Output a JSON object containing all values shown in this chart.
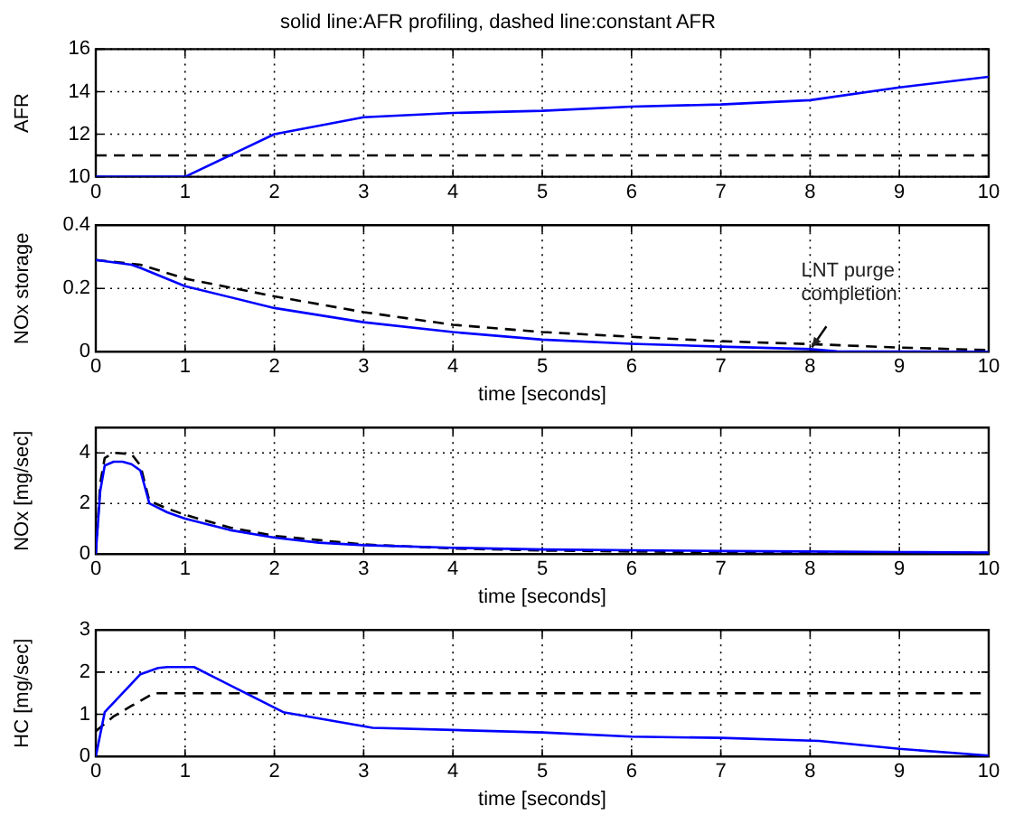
{
  "chart_data": [
    {
      "type": "line",
      "title": "solid line:AFR profiling, dashed line:constant AFR",
      "ylabel": "AFR",
      "xlim": [
        0,
        10
      ],
      "xticks": [
        0,
        1,
        2,
        3,
        4,
        5,
        6,
        7,
        8,
        9,
        10
      ],
      "ylim": [
        10,
        16
      ],
      "yticks": [
        10,
        12,
        14,
        16
      ],
      "grid": true,
      "marker": "none",
      "series": [
        {
          "color": "#0000ff",
          "line_style": "solid",
          "x": [
            0,
            1,
            2,
            3,
            4,
            5,
            6,
            7,
            8,
            9,
            10
          ],
          "values": [
            10,
            10,
            12,
            12.8,
            13,
            13.1,
            13.3,
            13.4,
            13.6,
            14.2,
            14.7
          ]
        },
        {
          "color": "#000000",
          "line_style": "dashed",
          "x": [
            0,
            10
          ],
          "values": [
            11,
            11
          ]
        }
      ]
    },
    {
      "type": "line",
      "ylabel": "NOx storage",
      "xlabel": "time [seconds]",
      "xlim": [
        0,
        10
      ],
      "xticks": [
        0,
        1,
        2,
        3,
        4,
        5,
        6,
        7,
        8,
        9,
        10
      ],
      "ylim": [
        0,
        0.4
      ],
      "yticks": [
        0,
        0.2,
        0.4
      ],
      "grid": true,
      "marker": "none",
      "annotations": [
        {
          "text": "LNT purge completion",
          "x": 8,
          "y": 0.008
        }
      ],
      "series": [
        {
          "color": "#0000ff",
          "line_style": "solid",
          "x": [
            0,
            0.4,
            0.5,
            1,
            2,
            3,
            4,
            5,
            6,
            7,
            8,
            8.3,
            10
          ],
          "values": [
            0.29,
            0.275,
            0.265,
            0.207,
            0.138,
            0.093,
            0.062,
            0.038,
            0.025,
            0.016,
            0.008,
            0.001,
            0
          ]
        },
        {
          "color": "#000000",
          "line_style": "dashed",
          "x": [
            0,
            0.5,
            1,
            2,
            3,
            4,
            5,
            6,
            7,
            8,
            9,
            10
          ],
          "values": [
            0.29,
            0.275,
            0.231,
            0.175,
            0.125,
            0.085,
            0.062,
            0.047,
            0.033,
            0.024,
            0.013,
            0.005
          ]
        }
      ]
    },
    {
      "type": "line",
      "ylabel": "NOx [mg/sec]",
      "xlabel": "time [seconds]",
      "xlim": [
        0,
        10
      ],
      "xticks": [
        0,
        1,
        2,
        3,
        4,
        5,
        6,
        7,
        8,
        9,
        10
      ],
      "ylim": [
        0,
        5
      ],
      "yticks": [
        0,
        2,
        4
      ],
      "grid": true,
      "marker": "none",
      "series": [
        {
          "color": "#0000ff",
          "line_style": "solid",
          "x": [
            0,
            0.05,
            0.1,
            0.2,
            0.3,
            0.4,
            0.5,
            0.6,
            0.8,
            1,
            1.5,
            2,
            2.5,
            3,
            4,
            5,
            6,
            7,
            8,
            9,
            10
          ],
          "values": [
            0,
            2.5,
            3.5,
            3.65,
            3.65,
            3.55,
            3.3,
            2.0,
            1.65,
            1.4,
            0.95,
            0.65,
            0.45,
            0.35,
            0.25,
            0.18,
            0.15,
            0.12,
            0.1,
            0.08,
            0.06
          ]
        },
        {
          "color": "#000000",
          "line_style": "dashed",
          "x": [
            0,
            0.05,
            0.1,
            0.2,
            0.4,
            0.5,
            0.6,
            0.8,
            1,
            1.5,
            2,
            3,
            4,
            5,
            6,
            7,
            8,
            10
          ],
          "values": [
            0,
            2.8,
            3.8,
            4.0,
            3.95,
            3.5,
            2.1,
            1.8,
            1.55,
            1.05,
            0.72,
            0.38,
            0.22,
            0.14,
            0.1,
            0.08,
            0.06,
            0.05
          ]
        }
      ]
    },
    {
      "type": "line",
      "ylabel": "HC [mg/sec]",
      "xlabel": "time [seconds]",
      "xlim": [
        0,
        10
      ],
      "xticks": [
        0,
        1,
        2,
        3,
        4,
        5,
        6,
        7,
        8,
        9,
        10
      ],
      "ylim": [
        0,
        3
      ],
      "yticks": [
        0,
        1,
        2,
        3
      ],
      "grid": true,
      "marker": "none",
      "series": [
        {
          "color": "#0000ff",
          "line_style": "solid",
          "x": [
            0,
            0.1,
            0.3,
            0.5,
            0.7,
            0.8,
            1.1,
            2.1,
            3.1,
            5,
            6,
            7,
            8.1,
            9,
            10
          ],
          "values": [
            0,
            1.05,
            1.5,
            1.95,
            2.1,
            2.12,
            2.12,
            1.05,
            0.68,
            0.57,
            0.47,
            0.44,
            0.37,
            0.18,
            0.02
          ]
        },
        {
          "color": "#000000",
          "line_style": "dashed",
          "x": [
            0,
            0.2,
            0.4,
            0.65,
            10
          ],
          "values": [
            0.6,
            0.95,
            1.2,
            1.5,
            1.5
          ]
        }
      ]
    }
  ]
}
